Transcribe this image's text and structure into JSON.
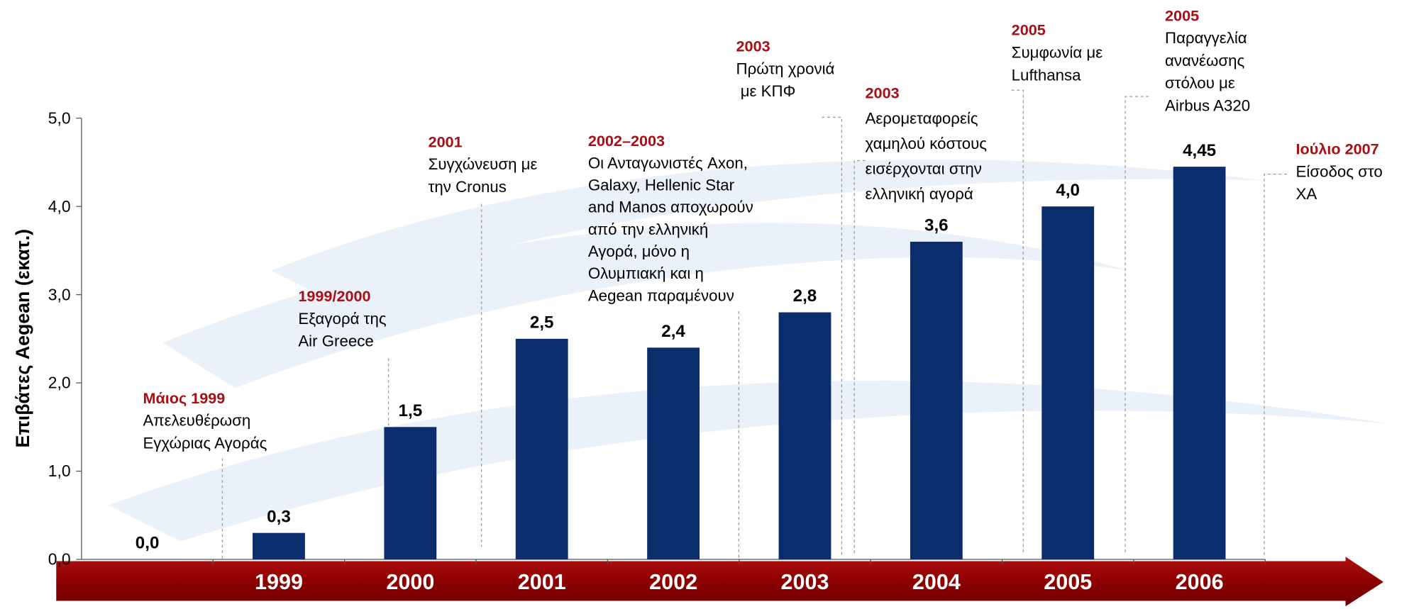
{
  "chart_data": {
    "type": "bar",
    "y_label": "Επιβάτες Aegean (εκατ.)",
    "categories": [
      null,
      "1999",
      "2000",
      "2001",
      "2002",
      "2003",
      "2004",
      "2005",
      "2006"
    ],
    "values": [
      0.0,
      0.3,
      1.5,
      2.5,
      2.4,
      2.8,
      3.6,
      4.0,
      4.45
    ],
    "value_labels": [
      "0,0",
      "0,3",
      "1,5",
      "2,5",
      "2,4",
      "2,8",
      "3,6",
      "4,0",
      "4,45"
    ],
    "color": "#0b2d6b",
    "ylim": [
      0,
      5
    ],
    "yticks": [
      {
        "value": 0,
        "label": "0,0"
      },
      {
        "value": 1,
        "label": "1,0"
      },
      {
        "value": 2,
        "label": "2,0"
      },
      {
        "value": 3,
        "label": "3,0"
      },
      {
        "value": 4,
        "label": "4,0"
      },
      {
        "value": 5,
        "label": "5,0"
      }
    ],
    "annotations": [
      {
        "date": "Μάιος 1999",
        "text": [
          "Απελευθέρωση",
          "Εγχώριας Αγοράς"
        ]
      },
      {
        "date": "1999/2000",
        "text": [
          "Εξαγορά της",
          "Air Greece"
        ]
      },
      {
        "date": "2001",
        "text": [
          "Συγχώνευση με",
          "την Cronus"
        ]
      },
      {
        "date": "2002–2003",
        "text": [
          "Οι Ανταγωνιστές Axon,",
          "Galaxy, Hellenic Star",
          "and Manos αποχωρούν",
          "από την ελληνική",
          "Αγορά, μόνο η",
          "Ολυμπιακή και η",
          "Aegean παραμένουν"
        ]
      },
      {
        "date": "2003",
        "text": [
          "Πρώτη χρονιά",
          " με ΚΠΦ"
        ]
      },
      {
        "date": "2003",
        "text": [
          "Αερομεταφορείς",
          "χαμηλού κόστους",
          "εισέρχονται στην",
          "ελληνική αγορά"
        ]
      },
      {
        "date": "2005",
        "text": [
          "Συμφωνία με",
          "Lufthansa"
        ]
      },
      {
        "date": "2005",
        "text": [
          "Παραγγελία",
          "ανανέωσης",
          "στόλου με",
          "Airbus A320"
        ]
      },
      {
        "date": "Ιούλιο 2007",
        "text": [
          "Είσοδος στο",
          "ΧΑ"
        ]
      }
    ]
  }
}
